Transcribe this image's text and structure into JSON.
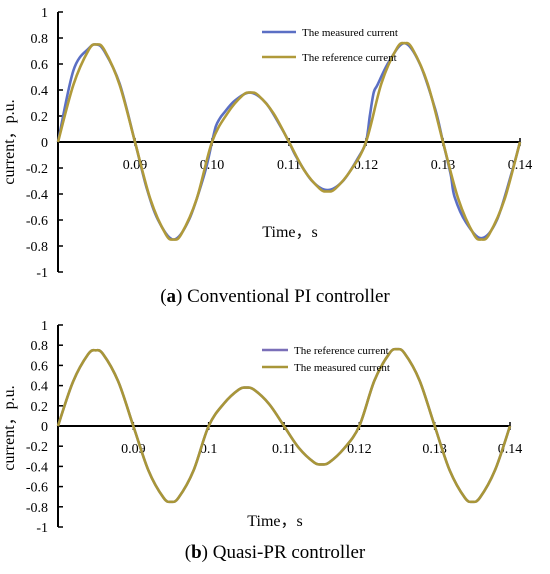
{
  "chart_data": [
    {
      "type": "line",
      "panel": "a",
      "ylabel": "current，p.u.",
      "xlabel": "Time，s",
      "xlim": [
        0.08,
        0.14
      ],
      "ylim": [
        -1,
        1
      ],
      "yticks": [
        "1",
        "0.8",
        "0.6",
        "0.4",
        "0.2",
        "0",
        "-0.2",
        "-0.4",
        "-0.6",
        "-0.8",
        "-1"
      ],
      "xticks": [
        "0.09",
        "0.10",
        "0.11",
        "0.12",
        "0.13",
        "0.14"
      ],
      "legend_position": "top-right",
      "series": [
        {
          "name": "The measured current",
          "color": "#5b6fc4",
          "x": [
            0.08,
            0.082,
            0.084,
            0.085,
            0.086,
            0.088,
            0.09,
            0.0915,
            0.093,
            0.095,
            0.097,
            0.099,
            0.1,
            0.1005,
            0.101,
            0.1015,
            0.103,
            0.105,
            0.107,
            0.109,
            0.11,
            0.111,
            0.113,
            0.115,
            0.117,
            0.119,
            0.12,
            0.1205,
            0.121,
            0.1215,
            0.123,
            0.125,
            0.127,
            0.129,
            0.13,
            0.131,
            0.1315,
            0.133,
            0.135,
            0.137,
            0.139,
            0.14
          ],
          "y": [
            0.0,
            0.55,
            0.72,
            0.75,
            0.7,
            0.45,
            0.0,
            -0.35,
            -0.6,
            -0.75,
            -0.6,
            -0.25,
            0.0,
            0.12,
            0.18,
            0.22,
            0.32,
            0.38,
            0.3,
            0.11,
            0.0,
            -0.12,
            -0.3,
            -0.37,
            -0.3,
            -0.12,
            0.0,
            0.2,
            0.38,
            0.44,
            0.62,
            0.76,
            0.6,
            0.25,
            0.0,
            -0.25,
            -0.42,
            -0.62,
            -0.74,
            -0.6,
            -0.22,
            0.0
          ]
        },
        {
          "name": "The reference current",
          "color": "#b09a3a",
          "x": [
            0.08,
            0.082,
            0.084,
            0.085,
            0.086,
            0.088,
            0.09,
            0.092,
            0.094,
            0.095,
            0.096,
            0.098,
            0.1,
            0.102,
            0.104,
            0.105,
            0.106,
            0.108,
            0.11,
            0.112,
            0.114,
            0.115,
            0.116,
            0.118,
            0.12,
            0.122,
            0.124,
            0.125,
            0.126,
            0.128,
            0.13,
            0.132,
            0.134,
            0.135,
            0.136,
            0.138,
            0.14
          ],
          "y": [
            0.0,
            0.44,
            0.71,
            0.75,
            0.71,
            0.44,
            0.0,
            -0.44,
            -0.71,
            -0.75,
            -0.71,
            -0.44,
            0.0,
            0.22,
            0.36,
            0.38,
            0.36,
            0.22,
            0.0,
            -0.22,
            -0.36,
            -0.38,
            -0.36,
            -0.22,
            0.0,
            0.45,
            0.72,
            0.76,
            0.72,
            0.45,
            0.0,
            -0.44,
            -0.71,
            -0.75,
            -0.71,
            -0.44,
            0.0
          ]
        }
      ]
    },
    {
      "type": "line",
      "panel": "b",
      "ylabel": "current，p.u.",
      "xlabel": "Time，s",
      "xlim": [
        0.08,
        0.14
      ],
      "ylim": [
        -1,
        1
      ],
      "yticks": [
        "1",
        "0.8",
        "0.6",
        "0.4",
        "0.2",
        "0",
        "-0.2",
        "-0.4",
        "-0.6",
        "-0.8",
        "-1"
      ],
      "xticks": [
        "0.09",
        "0.1",
        "0.11",
        "0.12",
        "0.13",
        "0.14"
      ],
      "legend_position": "top-right",
      "series": [
        {
          "name": "The reference current",
          "color": "#7a6fb8",
          "x": [
            0.08,
            0.082,
            0.084,
            0.085,
            0.086,
            0.088,
            0.09,
            0.092,
            0.094,
            0.095,
            0.096,
            0.098,
            0.1,
            0.102,
            0.104,
            0.105,
            0.106,
            0.108,
            0.11,
            0.112,
            0.114,
            0.115,
            0.116,
            0.118,
            0.12,
            0.122,
            0.124,
            0.125,
            0.126,
            0.128,
            0.13,
            0.132,
            0.134,
            0.135,
            0.136,
            0.138,
            0.14
          ],
          "y": [
            0.0,
            0.44,
            0.71,
            0.75,
            0.71,
            0.44,
            0.0,
            -0.44,
            -0.71,
            -0.75,
            -0.71,
            -0.44,
            0.0,
            0.22,
            0.36,
            0.38,
            0.36,
            0.22,
            0.0,
            -0.22,
            -0.36,
            -0.38,
            -0.36,
            -0.22,
            0.0,
            0.45,
            0.72,
            0.76,
            0.72,
            0.45,
            0.0,
            -0.44,
            -0.71,
            -0.75,
            -0.71,
            -0.44,
            0.0
          ]
        },
        {
          "name": "The measured current",
          "color": "#a89638",
          "x": [
            0.08,
            0.082,
            0.084,
            0.085,
            0.086,
            0.088,
            0.09,
            0.092,
            0.094,
            0.095,
            0.096,
            0.098,
            0.1,
            0.102,
            0.104,
            0.105,
            0.106,
            0.108,
            0.11,
            0.112,
            0.114,
            0.115,
            0.116,
            0.118,
            0.12,
            0.122,
            0.124,
            0.125,
            0.126,
            0.128,
            0.13,
            0.132,
            0.134,
            0.135,
            0.136,
            0.138,
            0.14
          ],
          "y": [
            0.0,
            0.44,
            0.71,
            0.75,
            0.71,
            0.44,
            0.0,
            -0.44,
            -0.71,
            -0.75,
            -0.71,
            -0.44,
            0.0,
            0.22,
            0.36,
            0.38,
            0.36,
            0.22,
            0.0,
            -0.22,
            -0.36,
            -0.38,
            -0.36,
            -0.22,
            0.0,
            0.45,
            0.72,
            0.76,
            0.72,
            0.45,
            0.0,
            -0.44,
            -0.71,
            -0.75,
            -0.71,
            -0.44,
            0.0
          ]
        }
      ]
    }
  ],
  "captions": {
    "a_letter": "a",
    "a_text": " Conventional PI controller",
    "b_letter": "b",
    "b_text": " Quasi-PR controller"
  }
}
